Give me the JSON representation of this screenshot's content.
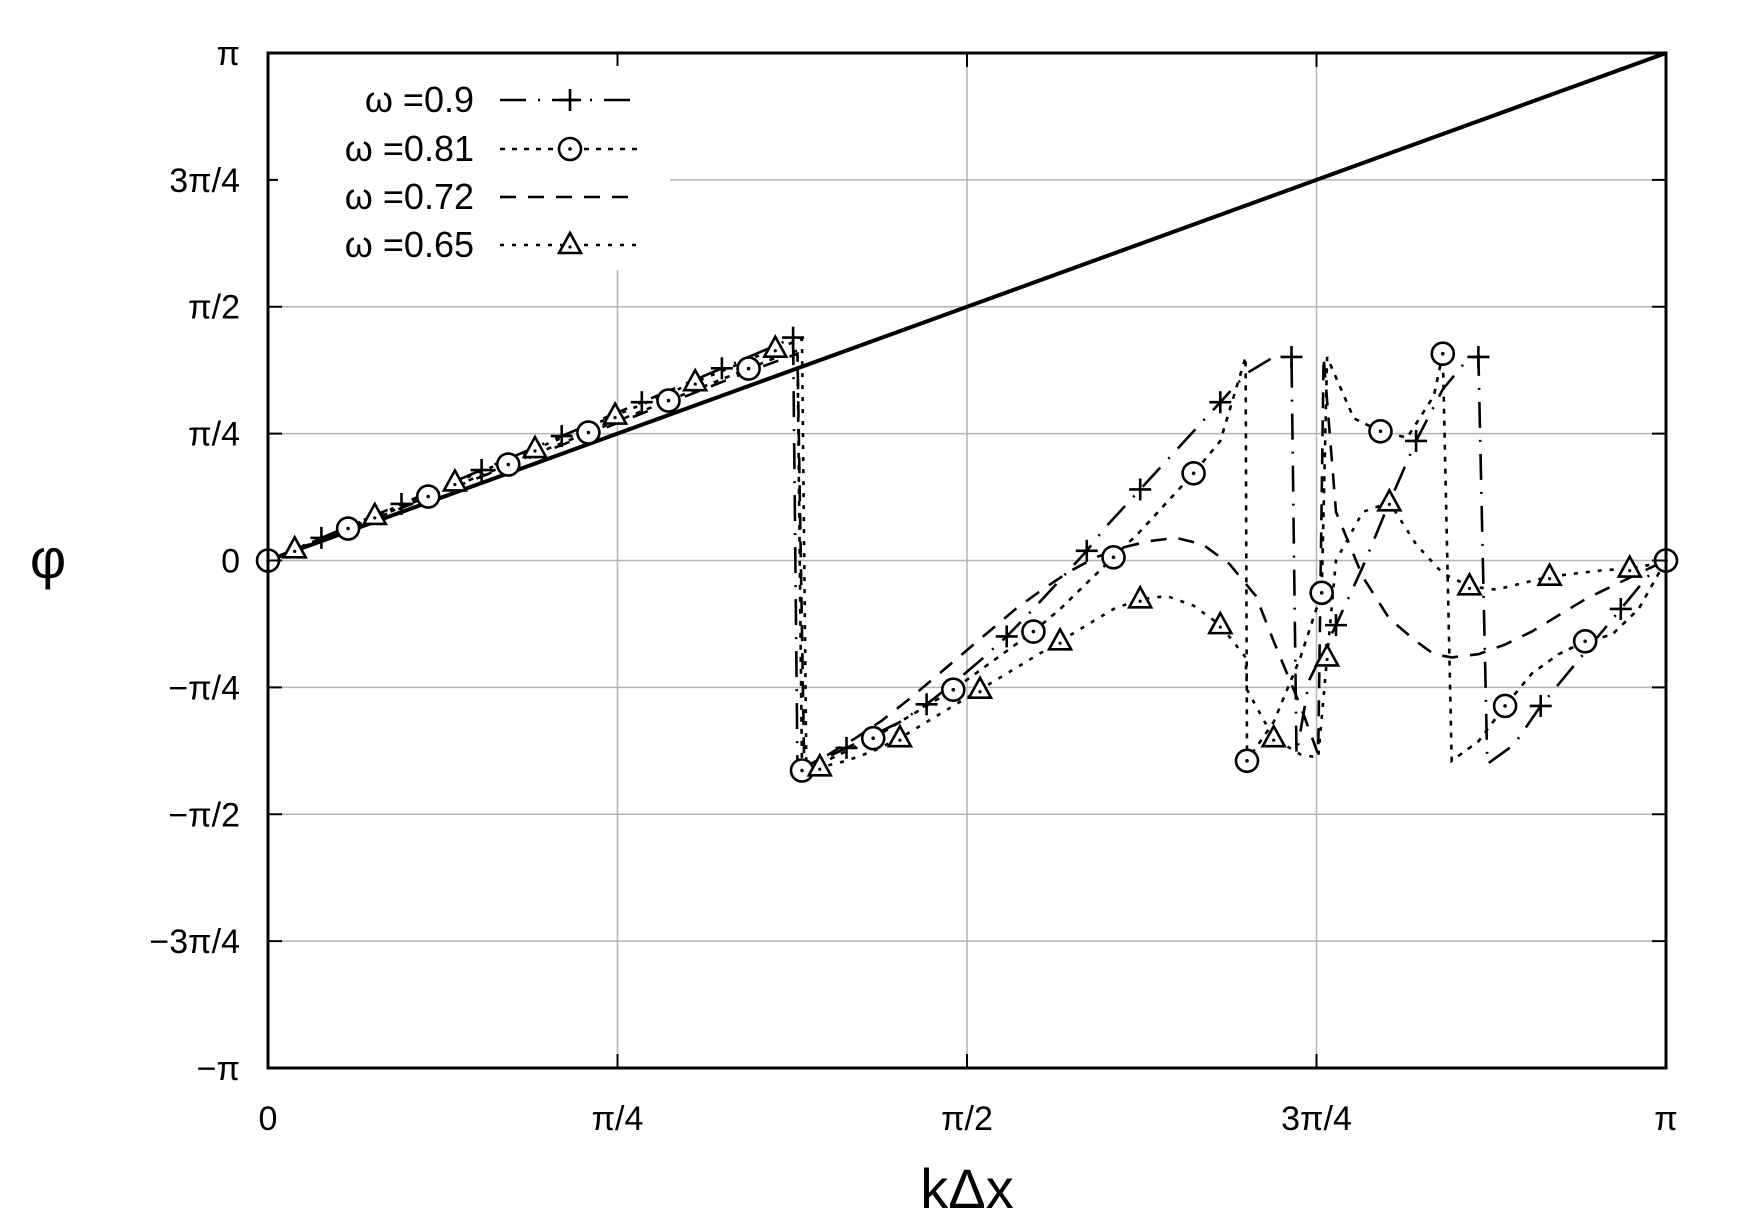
{
  "chart_data": {
    "type": "line",
    "xlabel": "kΔx",
    "ylabel": "φ",
    "xlim": [
      0,
      3.14159
    ],
    "ylim": [
      -3.14159,
      3.14159
    ],
    "x_ticks": [
      {
        "value": 0,
        "label": "0"
      },
      {
        "value": 0.7854,
        "label": "π/4"
      },
      {
        "value": 1.5708,
        "label": "π/2"
      },
      {
        "value": 2.3562,
        "label": "3π/4"
      },
      {
        "value": 3.14159,
        "label": "π"
      }
    ],
    "y_ticks": [
      {
        "value": -3.14159,
        "label": "−π"
      },
      {
        "value": -2.3562,
        "label": "−3π/4"
      },
      {
        "value": -1.5708,
        "label": "−π/2"
      },
      {
        "value": -0.7854,
        "label": "−π/4"
      },
      {
        "value": 0,
        "label": "0"
      },
      {
        "value": 0.7854,
        "label": "π/4"
      },
      {
        "value": 1.5708,
        "label": "π/2"
      },
      {
        "value": 2.3562,
        "label": "3π/4"
      },
      {
        "value": 3.14159,
        "label": "π"
      }
    ],
    "grid": true,
    "legend_position": "top-left",
    "reference_line": {
      "x": [
        0,
        3.14159
      ],
      "y": [
        0,
        3.14159
      ]
    },
    "series": [
      {
        "name": "ω =0.9",
        "marker": "plus",
        "dash": "26,12,2,12",
        "x": [
          0,
          0.06,
          0.12,
          0.18,
          0.24,
          0.3,
          0.36,
          0.42,
          0.48,
          0.54,
          0.6,
          0.66,
          0.72,
          0.78,
          0.84,
          0.9,
          0.96,
          1.02,
          1.08,
          1.14,
          1.18,
          1.19,
          1.24,
          1.3,
          1.36,
          1.42,
          1.48,
          1.54,
          1.6,
          1.66,
          1.72,
          1.78,
          1.84,
          1.88,
          1.9,
          1.96,
          2.02,
          2.08,
          2.14,
          2.2,
          2.26,
          2.3,
          2.3112,
          2.34,
          2.4,
          2.46,
          2.52,
          2.58,
          2.64,
          2.7,
          2.72,
          2.74,
          2.8,
          2.86,
          2.92,
          2.98,
          3.04,
          3.1,
          3.14159
        ],
        "y": [
          0,
          0.07,
          0.14,
          0.21,
          0.28,
          0.35,
          0.42,
          0.49,
          0.56,
          0.63,
          0.7,
          0.77,
          0.84,
          0.91,
          0.98,
          1.05,
          1.12,
          1.19,
          1.26,
          1.33,
          1.38,
          -1.3,
          -1.24,
          -1.16,
          -1.08,
          -1.0,
          -0.89,
          -0.76,
          -0.62,
          -0.47,
          -0.3,
          -0.12,
          0.06,
          0.2,
          0.26,
          0.44,
          0.62,
          0.8,
          0.98,
          1.16,
          1.26,
          1.26,
          -1.2,
          -0.74,
          -0.4,
          -0.04,
          0.36,
          0.74,
          1.06,
          1.26,
          1.26,
          -1.26,
          -1.14,
          -0.9,
          -0.7,
          -0.5,
          -0.3,
          -0.1,
          0
        ]
      },
      {
        "name": "ω =0.81",
        "marker": "circle",
        "dash": "5,7",
        "x": [
          0,
          0.06,
          0.12,
          0.18,
          0.24,
          0.3,
          0.36,
          0.42,
          0.48,
          0.54,
          0.6,
          0.66,
          0.72,
          0.78,
          0.84,
          0.9,
          0.96,
          1.02,
          1.08,
          1.14,
          1.19,
          1.2,
          1.24,
          1.3,
          1.36,
          1.42,
          1.48,
          1.54,
          1.6,
          1.66,
          1.72,
          1.78,
          1.84,
          1.9,
          1.96,
          2.02,
          2.08,
          2.14,
          2.1968,
          2.2,
          2.26,
          2.32,
          2.3678,
          2.38,
          2.44,
          2.5,
          2.56,
          2.62,
          2.64,
          2.66,
          2.72,
          2.78,
          2.84,
          2.9,
          2.96,
          3.02,
          3.08,
          3.14159
        ],
        "y": [
          0,
          0.066,
          0.132,
          0.198,
          0.264,
          0.33,
          0.396,
          0.462,
          0.528,
          0.594,
          0.66,
          0.726,
          0.792,
          0.858,
          0.924,
          0.99,
          1.056,
          1.122,
          1.188,
          1.254,
          1.3,
          -1.3,
          -1.26,
          -1.18,
          -1.1,
          -1.0,
          -0.9,
          -0.8,
          -0.68,
          -0.56,
          -0.44,
          -0.3,
          -0.14,
          0.02,
          0.18,
          0.36,
          0.54,
          0.74,
          1.26,
          -1.24,
          -1.0,
          -0.6,
          -0.2,
          1.26,
          0.88,
          0.8,
          0.76,
          1.02,
          1.28,
          -1.24,
          -1.12,
          -0.9,
          -0.7,
          -0.58,
          -0.5,
          -0.46,
          -0.3,
          0
        ]
      },
      {
        "name": "ω =0.72",
        "marker": "none",
        "dash": "16,12",
        "x": [
          0,
          0.12,
          0.24,
          0.36,
          0.48,
          0.6,
          0.72,
          0.84,
          0.96,
          1.08,
          1.19,
          1.205,
          1.26,
          1.32,
          1.38,
          1.44,
          1.5,
          1.56,
          1.62,
          1.68,
          1.74,
          1.8,
          1.86,
          1.92,
          1.98,
          2.04,
          2.1,
          2.16,
          2.22,
          2.26,
          2.32,
          2.36,
          2.3722,
          2.4,
          2.46,
          2.52,
          2.58,
          2.62,
          2.66,
          2.72,
          2.78,
          2.84,
          2.9,
          2.96,
          3.02,
          3.08,
          3.14159
        ],
        "y": [
          0,
          0.13,
          0.26,
          0.39,
          0.52,
          0.65,
          0.78,
          0.91,
          1.04,
          1.17,
          1.28,
          -1.28,
          -1.2,
          -1.1,
          -0.99,
          -0.86,
          -0.72,
          -0.58,
          -0.44,
          -0.3,
          -0.18,
          -0.07,
          0.02,
          0.08,
          0.12,
          0.14,
          0.1,
          -0.02,
          -0.22,
          -0.5,
          -0.9,
          -1.2,
          1.26,
          0.3,
          -0.1,
          -0.36,
          -0.5,
          -0.58,
          -0.6,
          -0.58,
          -0.52,
          -0.44,
          -0.34,
          -0.24,
          -0.16,
          -0.08,
          0
        ]
      },
      {
        "name": "ω =0.65",
        "marker": "triangle",
        "dash": "4,8",
        "x": [
          0,
          0.06,
          0.12,
          0.18,
          0.24,
          0.3,
          0.36,
          0.42,
          0.48,
          0.54,
          0.6,
          0.66,
          0.72,
          0.78,
          0.84,
          0.9,
          0.96,
          1.02,
          1.08,
          1.14,
          1.2,
          1.21,
          1.24,
          1.3,
          1.36,
          1.42,
          1.48,
          1.54,
          1.6,
          1.66,
          1.72,
          1.78,
          1.84,
          1.9,
          1.96,
          2.02,
          2.08,
          2.14,
          2.1968,
          2.2,
          2.26,
          2.32,
          2.36,
          2.38,
          2.4,
          2.46,
          2.52,
          2.58,
          2.64,
          2.7,
          2.76,
          2.82,
          2.88,
          2.94,
          3.0,
          3.06,
          3.1,
          3.14159
        ],
        "y": [
          0,
          0.069,
          0.138,
          0.207,
          0.276,
          0.345,
          0.414,
          0.483,
          0.552,
          0.621,
          0.69,
          0.759,
          0.828,
          0.897,
          0.966,
          1.035,
          1.104,
          1.173,
          1.242,
          1.311,
          1.37,
          -1.3,
          -1.28,
          -1.24,
          -1.18,
          -1.1,
          -1.0,
          -0.9,
          -0.8,
          -0.7,
          -0.6,
          -0.5,
          -0.4,
          -0.3,
          -0.24,
          -0.22,
          -0.28,
          -0.4,
          -0.6,
          -0.8,
          -1.1,
          -1.2,
          -1.22,
          -0.6,
          0.0,
          0.3,
          0.36,
          0.1,
          -0.08,
          -0.16,
          -0.18,
          -0.14,
          -0.1,
          -0.08,
          -0.06,
          -0.05,
          -0.03,
          0
        ]
      }
    ]
  }
}
